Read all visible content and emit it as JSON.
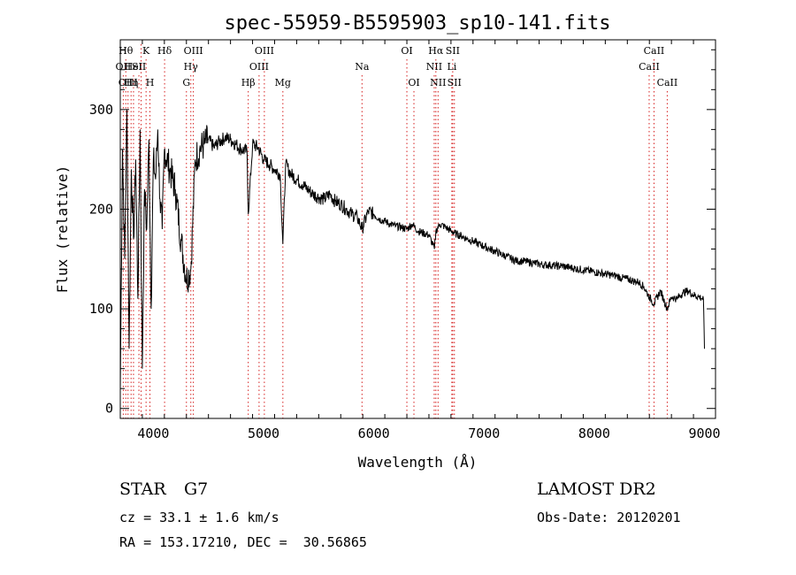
{
  "chart_data": {
    "type": "line",
    "title": "spec-55959-B5595903_sp10-141.fits",
    "xlabel": "Wavelength (Å)",
    "ylabel": "Flux (relative)",
    "xlim": [
      3700,
      9100
    ],
    "ylim": [
      -10,
      370
    ],
    "xticks": [
      4000,
      5000,
      6000,
      7000,
      8000,
      9000
    ],
    "yticks": [
      0,
      100,
      200,
      300
    ],
    "grid": false,
    "series": [
      {
        "x": [
          3700,
          3720,
          3740,
          3760,
          3780,
          3800,
          3820,
          3840,
          3860,
          3880,
          3900,
          3920,
          3940,
          3960,
          3980,
          4000,
          4020,
          4040,
          4060,
          4080,
          4100,
          4150,
          4200,
          4250,
          4300,
          4340,
          4380,
          4420,
          4460,
          4500,
          4550,
          4600,
          4650,
          4700,
          4750,
          4800,
          4850,
          4861,
          4900,
          4950,
          5000,
          5050,
          5100,
          5150,
          5175,
          5200,
          5250,
          5300,
          5350,
          5400,
          5450,
          5500,
          5550,
          5600,
          5650,
          5700,
          5750,
          5800,
          5850,
          5893,
          5950,
          6000,
          6050,
          6100,
          6150,
          6200,
          6250,
          6300,
          6350,
          6400,
          6450,
          6500,
          6550,
          6563,
          6600,
          6650,
          6700,
          6750,
          6800,
          6850,
          6900,
          6950,
          7000,
          7050,
          7100,
          7150,
          7200,
          7250,
          7300,
          7350,
          7400,
          7450,
          7500,
          7550,
          7600,
          7650,
          7700,
          7750,
          7800,
          7850,
          7900,
          7950,
          8000,
          8050,
          8100,
          8150,
          8200,
          8250,
          8300,
          8350,
          8400,
          8450,
          8498,
          8542,
          8600,
          8662,
          8700,
          8750,
          8800,
          8850,
          8900,
          8950,
          8990,
          9000
        ],
        "y": [
          20,
          260,
          150,
          300,
          60,
          240,
          170,
          250,
          110,
          280,
          40,
          220,
          180,
          270,
          100,
          250,
          230,
          280,
          210,
          180,
          260,
          240,
          220,
          170,
          130,
          140,
          250,
          260,
          265,
          270,
          262,
          268,
          272,
          270,
          265,
          260,
          258,
          195,
          265,
          262,
          250,
          245,
          240,
          235,
          165,
          245,
          235,
          230,
          225,
          220,
          215,
          212,
          210,
          215,
          208,
          205,
          200,
          195,
          192,
          180,
          198,
          195,
          190,
          188,
          185,
          183,
          182,
          180,
          185,
          178,
          176,
          174,
          160,
          178,
          185,
          182,
          178,
          175,
          173,
          170,
          168,
          165,
          163,
          160,
          158,
          155,
          153,
          150,
          148,
          148,
          147,
          146,
          145,
          144,
          144,
          143,
          143,
          142,
          141,
          140,
          139,
          138,
          137,
          136,
          135,
          134,
          133,
          131,
          130,
          128,
          127,
          122,
          112,
          105,
          118,
          100,
          112,
          110,
          116,
          118,
          114,
          112,
          110,
          60
        ]
      }
    ],
    "lines": [
      {
        "wl": 3727,
        "label": "OII",
        "row": 2
      },
      {
        "wl": 3750,
        "label": "Hθ",
        "row": 1
      },
      {
        "wl": 3770,
        "label": "OIII",
        "row": 3
      },
      {
        "wl": 3798,
        "label": "Hη",
        "row": 3
      },
      {
        "wl": 3820,
        "label": "HeI",
        "row": 2
      },
      {
        "wl": 3869,
        "label": "SII",
        "row": 2
      },
      {
        "wl": 3889,
        "label": "",
        "row": 0
      },
      {
        "wl": 3934,
        "label": "K",
        "row": 1
      },
      {
        "wl": 3969,
        "label": "H",
        "row": 3
      },
      {
        "wl": 4102,
        "label": "Hδ",
        "row": 1
      },
      {
        "wl": 4300,
        "label": "G",
        "row": 3
      },
      {
        "wl": 4340,
        "label": "Hγ",
        "row": 2
      },
      {
        "wl": 4363,
        "label": "OIII",
        "row": 1
      },
      {
        "wl": 4861,
        "label": "Hβ",
        "row": 3
      },
      {
        "wl": 4959,
        "label": "OIII",
        "row": 2
      },
      {
        "wl": 5007,
        "label": "OIII",
        "row": 1
      },
      {
        "wl": 5175,
        "label": "Mg",
        "row": 3
      },
      {
        "wl": 5893,
        "label": "Na",
        "row": 2
      },
      {
        "wl": 6300,
        "label": "OI",
        "row": 1
      },
      {
        "wl": 6364,
        "label": "OI",
        "row": 3
      },
      {
        "wl": 6548,
        "label": "NII",
        "row": 2
      },
      {
        "wl": 6563,
        "label": "Hα",
        "row": 1
      },
      {
        "wl": 6583,
        "label": "NII",
        "row": 3
      },
      {
        "wl": 6708,
        "label": "Li",
        "row": 2
      },
      {
        "wl": 6716,
        "label": "SII",
        "row": 1
      },
      {
        "wl": 6731,
        "label": "SII",
        "row": 3
      },
      {
        "wl": 8498,
        "label": "CaII",
        "row": 2
      },
      {
        "wl": 8542,
        "label": "CaII",
        "row": 1
      },
      {
        "wl": 8662,
        "label": "CaII",
        "row": 3
      }
    ]
  },
  "info": {
    "class_label": "STAR",
    "subclass": "G7",
    "survey": "LAMOST DR2",
    "cz": "cz = 33.1 ± 1.6 km/s",
    "obs_date": "Obs-Date: 20120201",
    "radec": "RA = 153.17210, DEC =  30.56865"
  }
}
